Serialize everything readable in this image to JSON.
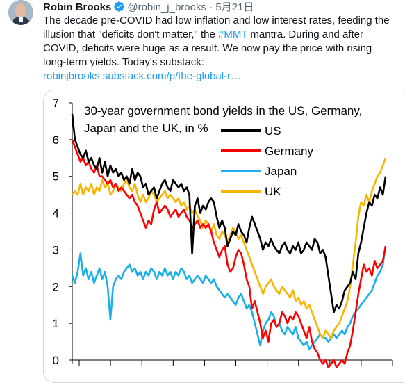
{
  "tweet": {
    "author_name": "Robin Brooks",
    "handle": "@robin_j_brooks",
    "separator": "·",
    "date": "5月21日",
    "text_line1": "The decade pre-COVID had low inflation and low interest rates, feeding the",
    "text_line2a": "illusion that \"deficits don't matter,\" the ",
    "hashtag": "#MMT",
    "text_line2b": " mantra. During and after",
    "text_line3": "COVID, deficits were huge as a result. We now pay the price with rising",
    "text_line4": "long-term yields. Today's substack:",
    "link": "robinjbrooks.substack.com/p/the-global-r…"
  },
  "colors": {
    "accent": "#1d9bf0",
    "verified": "#1d9bf0"
  },
  "icons": {
    "verified": "verified-badge-icon",
    "avatar": "avatar"
  },
  "chart_data": {
    "type": "line",
    "title_line1": "30-year government bond yields in the US, Germany,",
    "title_line2": "Japan and the UK, in %",
    "ylim": [
      0,
      7
    ],
    "y_ticks": [
      "0",
      "1",
      "2",
      "3",
      "4",
      "5",
      "6",
      "7"
    ],
    "legend": [
      {
        "name": "US",
        "color": "#000000"
      },
      {
        "name": "Germany",
        "color": "#ff0000"
      },
      {
        "name": "Japan",
        "color": "#19b0e8"
      },
      {
        "name": "UK",
        "color": "#f8b500"
      }
    ],
    "series": [
      {
        "name": "US",
        "color": "#000000",
        "x": [
          0,
          1,
          2,
          3,
          4,
          5,
          6,
          7,
          8,
          9,
          10,
          11,
          12,
          13,
          14,
          15,
          16,
          17,
          18,
          19,
          20,
          21,
          22,
          23,
          24,
          25,
          26,
          27,
          28,
          29,
          30,
          31,
          32,
          33,
          34,
          35,
          36,
          37,
          38,
          39,
          40,
          41,
          42,
          43,
          44,
          45,
          46,
          47,
          48,
          49,
          50,
          51,
          52,
          53,
          54,
          55,
          56,
          57,
          58,
          59,
          60,
          61,
          62,
          63,
          64,
          65,
          66,
          67,
          68,
          69,
          70,
          71,
          72,
          73,
          74,
          75,
          76,
          77,
          78,
          79,
          80,
          81,
          82,
          83,
          84,
          85,
          86,
          87,
          88,
          89,
          90,
          91,
          92,
          93,
          94,
          95,
          96,
          97,
          98,
          99,
          100,
          101,
          102,
          103,
          104,
          105,
          106,
          107,
          108,
          109,
          110,
          111,
          112,
          113,
          114,
          115
        ],
        "y": [
          6.7,
          6.0,
          5.8,
          5.6,
          5.5,
          5.7,
          5.4,
          5.5,
          5.3,
          5.2,
          5.5,
          5.1,
          5.4,
          5.0,
          5.3,
          5.1,
          5.2,
          5.0,
          5.1,
          4.9,
          5.0,
          4.8,
          5.2,
          4.9,
          5.1,
          5.0,
          4.7,
          4.8,
          4.5,
          4.6,
          4.7,
          4.4,
          4.6,
          4.8,
          4.9,
          4.7,
          4.6,
          4.9,
          4.8,
          4.7,
          4.8,
          4.6,
          4.7,
          4.5,
          2.9,
          4.2,
          4.4,
          4.0,
          4.2,
          4.1,
          4.3,
          4.4,
          4.3,
          3.9,
          3.6,
          3.8,
          3.6,
          3.1,
          3.3,
          3.5,
          3.4,
          3.7,
          3.5,
          3.4,
          3.2,
          3.6,
          3.9,
          3.7,
          3.5,
          3.3,
          3.0,
          3.2,
          3.1,
          3.3,
          3.1,
          3.0,
          2.9,
          3.1,
          3.2,
          3.0,
          2.9,
          3.1,
          3.0,
          3.2,
          2.9,
          3.0,
          3.2,
          3.1,
          3.0,
          3.3,
          3.2,
          2.9,
          3.0,
          2.8,
          2.3,
          1.8,
          1.3,
          1.5,
          1.4,
          1.6,
          1.9,
          2.0,
          2.1,
          2.4,
          2.2,
          2.9,
          3.2,
          3.6,
          4.0,
          4.3,
          4.2,
          4.5,
          4.4,
          4.7,
          4.5,
          5.0
        ]
      },
      {
        "name": "Germany",
        "color": "#ff0000",
        "x": [
          0,
          1,
          2,
          3,
          4,
          5,
          6,
          7,
          8,
          9,
          10,
          11,
          12,
          13,
          14,
          15,
          16,
          17,
          18,
          19,
          20,
          21,
          22,
          23,
          24,
          25,
          26,
          27,
          28,
          29,
          30,
          31,
          32,
          33,
          34,
          35,
          36,
          37,
          38,
          39,
          40,
          41,
          42,
          43,
          44,
          45,
          46,
          47,
          48,
          49,
          50,
          51,
          52,
          53,
          54,
          55,
          56,
          57,
          58,
          59,
          60,
          61,
          62,
          63,
          64,
          65,
          66,
          67,
          68,
          69,
          70,
          71,
          72,
          73,
          74,
          75,
          76,
          77,
          78,
          79,
          80,
          81,
          82,
          83,
          84,
          85,
          86,
          87,
          88,
          89,
          90,
          91,
          92,
          93,
          94,
          95,
          96,
          97,
          98,
          99,
          100,
          101,
          102,
          103,
          104,
          105,
          106,
          107,
          108,
          109,
          110,
          111,
          112,
          113,
          114,
          115
        ],
        "y": [
          6.0,
          5.8,
          5.6,
          5.4,
          5.5,
          5.3,
          5.4,
          5.2,
          5.1,
          5.3,
          5.0,
          5.0,
          4.9,
          4.8,
          4.9,
          4.7,
          4.8,
          4.6,
          4.7,
          4.6,
          4.5,
          4.4,
          4.5,
          4.3,
          4.2,
          4.0,
          3.8,
          3.6,
          3.8,
          3.7,
          4.1,
          4.3,
          4.0,
          4.1,
          4.2,
          4.1,
          3.9,
          4.0,
          4.1,
          3.9,
          4.0,
          4.1,
          3.9,
          3.8,
          3.6,
          3.7,
          3.8,
          3.6,
          3.7,
          3.6,
          3.7,
          3.5,
          3.2,
          3.0,
          2.8,
          3.0,
          3.1,
          2.6,
          2.4,
          2.5,
          2.8,
          3.0,
          2.9,
          2.6,
          2.2,
          2.0,
          1.4,
          1.6,
          1.3,
          1.0,
          0.6,
          0.8,
          0.5,
          1.0,
          1.1,
          0.9,
          1.0,
          1.3,
          1.2,
          1.0,
          1.2,
          1.1,
          1.3,
          1.2,
          1.0,
          0.8,
          0.6,
          0.9,
          0.5,
          0.3,
          0.2,
          0.0,
          -0.1,
          0.0,
          -0.2,
          -0.1,
          0.0,
          -0.2,
          -0.1,
          0.0,
          -0.1,
          0.2,
          0.4,
          0.8,
          1.3,
          1.8,
          2.2,
          2.6,
          2.4,
          2.5,
          2.3,
          2.7,
          2.5,
          2.6,
          2.7,
          3.1
        ]
      },
      {
        "name": "Japan",
        "color": "#19b0e8",
        "x": [
          0,
          1,
          2,
          3,
          4,
          5,
          6,
          7,
          8,
          9,
          10,
          11,
          12,
          13,
          14,
          15,
          16,
          17,
          18,
          19,
          20,
          21,
          22,
          23,
          24,
          25,
          26,
          27,
          28,
          29,
          30,
          31,
          32,
          33,
          34,
          35,
          36,
          37,
          38,
          39,
          40,
          41,
          42,
          43,
          44,
          45,
          46,
          47,
          48,
          49,
          50,
          51,
          52,
          53,
          54,
          55,
          56,
          57,
          58,
          59,
          60,
          61,
          62,
          63,
          64,
          65,
          66,
          67,
          68,
          69,
          70,
          71,
          72,
          73,
          74,
          75,
          76,
          77,
          78,
          79,
          80,
          81,
          82,
          83,
          84,
          85,
          86,
          87,
          88,
          89,
          90,
          91,
          92,
          93,
          94,
          95,
          96,
          97,
          98,
          99,
          100,
          101,
          102,
          103,
          104,
          105,
          106,
          107,
          108,
          109,
          110,
          111,
          112,
          113,
          114,
          115
        ],
        "y": [
          2.3,
          2.1,
          2.4,
          2.9,
          2.3,
          2.5,
          2.2,
          2.4,
          2.1,
          2.3,
          2.5,
          2.2,
          2.4,
          2.0,
          1.1,
          2.0,
          2.2,
          2.3,
          2.2,
          2.4,
          2.5,
          2.6,
          2.4,
          2.5,
          2.3,
          2.4,
          2.2,
          2.4,
          2.3,
          2.5,
          2.4,
          2.2,
          2.4,
          2.3,
          2.5,
          2.3,
          2.4,
          2.2,
          2.4,
          2.3,
          2.5,
          2.4,
          2.2,
          2.3,
          2.1,
          2.2,
          2.3,
          2.2,
          2.1,
          2.3,
          2.2,
          2.1,
          2.2,
          2.0,
          1.9,
          1.8,
          1.7,
          1.8,
          1.7,
          1.6,
          1.5,
          1.7,
          1.8,
          1.6,
          1.4,
          1.5,
          1.3,
          1.0,
          0.7,
          0.4,
          0.8,
          1.0,
          1.1,
          1.3,
          1.2,
          0.9,
          1.0,
          0.8,
          0.7,
          0.9,
          0.8,
          0.7,
          0.9,
          0.6,
          0.5,
          0.4,
          0.5,
          0.3,
          0.4,
          0.5,
          0.6,
          0.7,
          0.6,
          0.6,
          0.5,
          0.6,
          0.7,
          0.6,
          0.7,
          0.8,
          0.7,
          0.9,
          1.0,
          1.2,
          1.3,
          1.4,
          1.5,
          1.6,
          1.7,
          1.8,
          1.9,
          2.1,
          2.3,
          2.4,
          2.6,
          3.1
        ]
      },
      {
        "name": "UK",
        "color": "#f8b500",
        "x": [
          0,
          1,
          2,
          3,
          4,
          5,
          6,
          7,
          8,
          9,
          10,
          11,
          12,
          13,
          14,
          15,
          16,
          17,
          18,
          19,
          20,
          21,
          22,
          23,
          24,
          25,
          26,
          27,
          28,
          29,
          30,
          31,
          32,
          33,
          34,
          35,
          36,
          37,
          38,
          39,
          40,
          41,
          42,
          43,
          44,
          45,
          46,
          47,
          48,
          49,
          50,
          51,
          52,
          53,
          54,
          55,
          56,
          57,
          58,
          59,
          60,
          61,
          62,
          63,
          64,
          65,
          66,
          67,
          68,
          69,
          70,
          71,
          72,
          73,
          74,
          75,
          76,
          77,
          78,
          79,
          80,
          81,
          82,
          83,
          84,
          85,
          86,
          87,
          88,
          89,
          90,
          91,
          92,
          93,
          94,
          95,
          96,
          97,
          98,
          99,
          100,
          101,
          102,
          103,
          104,
          105,
          106,
          107,
          108,
          109,
          110,
          111,
          112,
          113,
          114,
          115
        ],
        "y": [
          4.5,
          4.6,
          4.5,
          4.8,
          4.5,
          4.7,
          4.6,
          4.8,
          4.5,
          4.7,
          4.6,
          4.9,
          4.7,
          4.8,
          4.5,
          4.6,
          4.8,
          4.7,
          4.6,
          4.8,
          4.9,
          4.7,
          4.6,
          4.8,
          4.5,
          4.3,
          4.5,
          4.3,
          4.4,
          4.6,
          4.5,
          4.3,
          4.4,
          4.5,
          4.6,
          4.4,
          4.5,
          4.4,
          4.3,
          4.4,
          4.2,
          4.3,
          4.1,
          4.2,
          4.0,
          4.1,
          3.9,
          3.8,
          3.6,
          3.8,
          3.7,
          3.5,
          3.7,
          3.4,
          3.3,
          3.5,
          3.4,
          3.2,
          3.4,
          3.6,
          3.5,
          3.3,
          3.4,
          3.2,
          3.0,
          2.8,
          2.6,
          2.4,
          2.2,
          2.0,
          1.8,
          2.0,
          2.1,
          2.2,
          2.0,
          1.9,
          1.8,
          2.0,
          1.9,
          1.8,
          1.7,
          1.9,
          1.6,
          1.7,
          1.5,
          1.6,
          1.4,
          1.5,
          1.3,
          1.1,
          0.9,
          0.7,
          0.6,
          0.8,
          0.7,
          0.6,
          0.8,
          0.9,
          1.0,
          1.2,
          1.4,
          1.6,
          2.0,
          2.6,
          3.2,
          3.9,
          4.3,
          4.2,
          4.5,
          4.3,
          4.6,
          4.8,
          5.0,
          5.1,
          5.3,
          5.5
        ]
      }
    ]
  }
}
